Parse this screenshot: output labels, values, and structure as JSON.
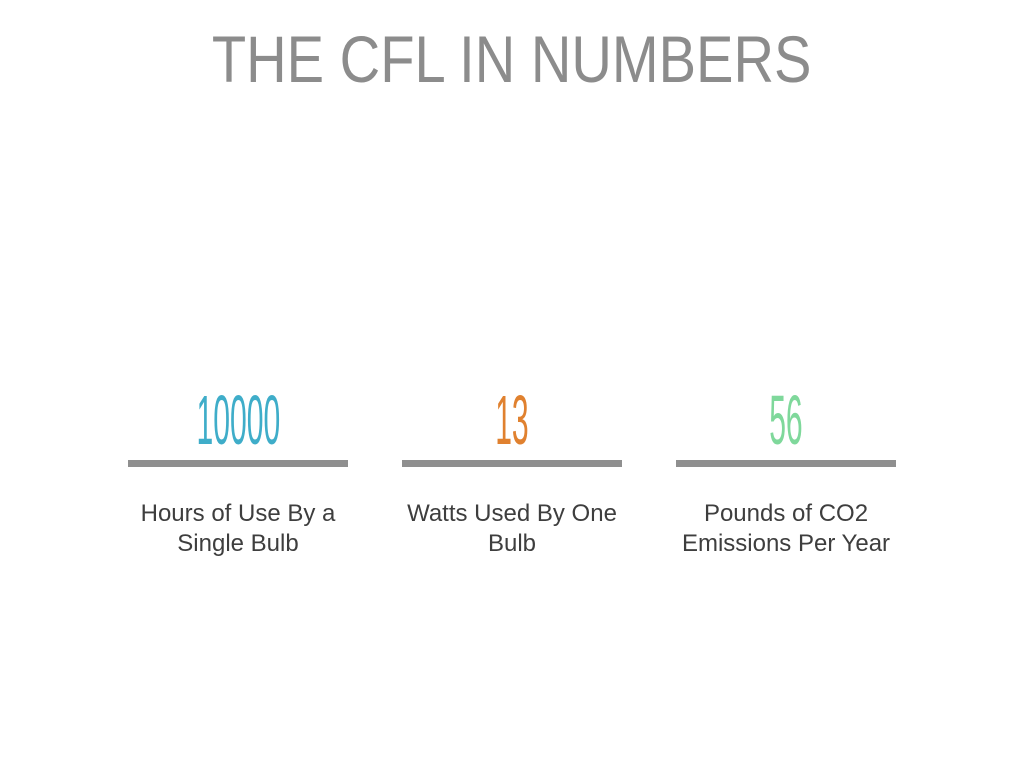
{
  "slide": {
    "title": "THE CFL IN NUMBERS"
  },
  "colors": {
    "title": "#8c8c8c",
    "divider": "#8f8f8f",
    "caption": "#3e3e3e",
    "background": "#ffffff",
    "stat_blue": "#3fadc9",
    "stat_orange": "#e0812f",
    "stat_green": "#7fd89b"
  },
  "stats": [
    {
      "value": "10000",
      "color": "#3fadc9",
      "label": "Hours of Use By a Single Bulb",
      "caption_lines": [
        "Hours of Use By a",
        "Single Bulb"
      ]
    },
    {
      "value": "13",
      "color": "#e0812f",
      "label": "Watts Used By One Bulb",
      "caption_lines": [
        "Watts Used By One",
        "Bulb"
      ]
    },
    {
      "value": "56",
      "color": "#7fd89b",
      "label": "Pounds of CO2 Emissions Per Year",
      "caption_lines": [
        "Pounds of CO2",
        "Emissions Per Year"
      ]
    }
  ]
}
